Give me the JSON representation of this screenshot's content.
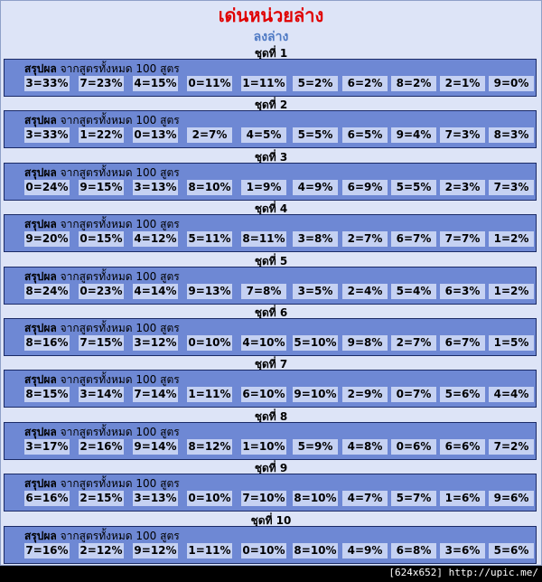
{
  "page": {
    "title": "เด่นหน่วยล่าง",
    "subtitle": "ลงล่าง",
    "summary_head": "สรุปผล",
    "summary_text": "จากสูตรทั้งหมด 100 สูตร",
    "footer": "[624x652] http://upic.me/"
  },
  "sets": [
    {
      "label": "ชุดที่ 1",
      "cells": [
        "3=33%",
        "7=23%",
        "4=15%",
        "0=11%",
        "1=11%",
        "5=2%",
        "6=2%",
        "8=2%",
        "2=1%",
        "9=0%"
      ]
    },
    {
      "label": "ชุดที่ 2",
      "cells": [
        "3=33%",
        "1=22%",
        "0=13%",
        "2=7%",
        "4=5%",
        "5=5%",
        "6=5%",
        "9=4%",
        "7=3%",
        "8=3%"
      ]
    },
    {
      "label": "ชุดที่ 3",
      "cells": [
        "0=24%",
        "9=15%",
        "3=13%",
        "8=10%",
        "1=9%",
        "4=9%",
        "6=9%",
        "5=5%",
        "2=3%",
        "7=3%"
      ]
    },
    {
      "label": "ชุดที่ 4",
      "cells": [
        "9=20%",
        "0=15%",
        "4=12%",
        "5=11%",
        "8=11%",
        "3=8%",
        "2=7%",
        "6=7%",
        "7=7%",
        "1=2%"
      ]
    },
    {
      "label": "ชุดที่ 5",
      "cells": [
        "8=24%",
        "0=23%",
        "4=14%",
        "9=13%",
        "7=8%",
        "3=5%",
        "2=4%",
        "5=4%",
        "6=3%",
        "1=2%"
      ]
    },
    {
      "label": "ชุดที่ 6",
      "cells": [
        "8=16%",
        "7=15%",
        "3=12%",
        "0=10%",
        "4=10%",
        "5=10%",
        "9=8%",
        "2=7%",
        "6=7%",
        "1=5%"
      ]
    },
    {
      "label": "ชุดที่ 7",
      "cells": [
        "8=15%",
        "3=14%",
        "7=14%",
        "1=11%",
        "6=10%",
        "9=10%",
        "2=9%",
        "0=7%",
        "5=6%",
        "4=4%"
      ]
    },
    {
      "label": "ชุดที่ 8",
      "cells": [
        "3=17%",
        "2=16%",
        "9=14%",
        "8=12%",
        "1=10%",
        "5=9%",
        "4=8%",
        "0=6%",
        "6=6%",
        "7=2%"
      ]
    },
    {
      "label": "ชุดที่ 9",
      "cells": [
        "6=16%",
        "2=15%",
        "3=13%",
        "0=10%",
        "7=10%",
        "8=10%",
        "4=7%",
        "5=7%",
        "1=6%",
        "9=6%"
      ]
    },
    {
      "label": "ชุดที่ 10",
      "cells": [
        "7=16%",
        "2=12%",
        "9=12%",
        "1=11%",
        "0=10%",
        "8=10%",
        "4=9%",
        "6=8%",
        "3=6%",
        "5=6%"
      ]
    }
  ]
}
